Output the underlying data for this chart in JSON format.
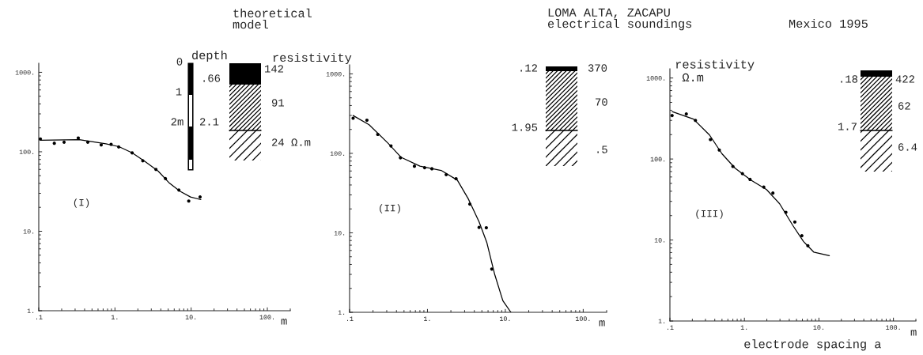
{
  "chart_data": [
    {
      "type": "scatter",
      "log": "xy",
      "xlim": [
        0.1,
        200
      ],
      "ylim": [
        1,
        1300
      ],
      "xticks": [
        {
          "value": 0.1,
          "label": ".1"
        },
        {
          "value": 1,
          "label": "1."
        },
        {
          "value": 10,
          "label": "10."
        },
        {
          "value": 100,
          "label": "100."
        }
      ],
      "yticks": [
        {
          "value": 1,
          "label": "1."
        },
        {
          "value": 10,
          "label": "10."
        },
        {
          "value": 100,
          "label": "100."
        },
        {
          "value": 1000,
          "label": "1000."
        }
      ],
      "annotations": [
        "theoretical\nmodel",
        "0",
        "1",
        "2m",
        "depth",
        ".66",
        "2.1",
        "resistivity",
        "142",
        "91",
        "24 Ω.m",
        "(I)",
        "m"
      ],
      "series": [
        {
          "marker": "circle",
          "color": "#000000",
          "x": [
            0.105,
            0.16,
            0.215,
            0.33,
            0.44,
            0.66,
            0.89,
            1.12,
            1.68,
            2.32,
            3.45,
            4.6,
            6.9,
            9.3,
            13.1
          ],
          "values": [
            145,
            128,
            132,
            149,
            132,
            122,
            124,
            115,
            97,
            77,
            60,
            46,
            33,
            24,
            27
          ]
        },
        {
          "type": "line",
          "color": "#000000",
          "x": [
            0.105,
            0.34,
            0.76,
            1.13,
            1.68,
            2.5,
            3.7,
            5.1,
            7.1,
            9.8,
            13.4
          ],
          "values": [
            140,
            142,
            126,
            116,
            97,
            75,
            57,
            41,
            32,
            27,
            25
          ]
        }
      ]
    },
    {
      "type": "scatter",
      "log": "xy",
      "xlim": [
        0.1,
        200
      ],
      "ylim": [
        1,
        1300
      ],
      "title": "LOMA ALTA, ZACAPU\nelectrical soundings",
      "xticks": [
        {
          "value": 0.1,
          "label": ".1"
        },
        {
          "value": 1,
          "label": "1."
        },
        {
          "value": 10,
          "label": "10."
        },
        {
          "value": 100,
          "label": "100."
        }
      ],
      "yticks": [
        {
          "value": 1,
          "label": "1."
        },
        {
          "value": 10,
          "label": "10."
        },
        {
          "value": 100,
          "label": "100."
        },
        {
          "value": 1000,
          "label": "1000."
        }
      ],
      "annotations": [
        ".12",
        "370",
        "70",
        "1.95",
        ".5",
        "(II)",
        "m"
      ],
      "series": [
        {
          "marker": "circle",
          "color": "#000000",
          "x": [
            0.111,
            0.167,
            0.23,
            0.34,
            0.45,
            0.68,
            0.92,
            1.14,
            1.74,
            2.33,
            3.5,
            4.6,
            5.7,
            6.7
          ],
          "values": [
            277,
            261,
            173,
            124,
            88,
            69,
            66,
            64,
            54,
            48,
            23,
            11.7,
            11.6,
            3.5
          ]
        },
        {
          "type": "line",
          "color": "#000000",
          "x": [
            0.111,
            0.178,
            0.31,
            0.46,
            0.8,
            1.5,
            2.42,
            3.33,
            4.6,
            5.8,
            7.3,
            9.3,
            11.8
          ],
          "values": [
            299,
            229,
            135,
            89,
            69,
            61,
            46,
            27,
            13.8,
            7.5,
            3.0,
            1.4,
            1.0
          ]
        }
      ]
    },
    {
      "type": "scatter",
      "log": "xy",
      "xlim": [
        0.1,
        200
      ],
      "ylim": [
        1,
        1300
      ],
      "xlabel": "electrode spacing a",
      "ylabel": "resistivity\n Ω.m",
      "xticks": [
        {
          "value": 0.1,
          "label": ".1"
        },
        {
          "value": 1,
          "label": "1."
        },
        {
          "value": 10,
          "label": "10."
        },
        {
          "value": 100,
          "label": "100."
        }
      ],
      "yticks": [
        {
          "value": 1,
          "label": "1."
        },
        {
          "value": 10,
          "label": "10."
        },
        {
          "value": 100,
          "label": "100."
        },
        {
          "value": 1000,
          "label": "1000."
        }
      ],
      "annotations": [
        "Mexico 1995",
        ".18",
        "422",
        "62",
        "1.7",
        "6.4",
        "(III)",
        "m"
      ],
      "series": [
        {
          "marker": "circle",
          "color": "#000000",
          "x": [
            0.107,
            0.166,
            0.22,
            0.35,
            0.46,
            0.7,
            0.94,
            1.19,
            1.82,
            2.41,
            3.6,
            4.75,
            5.9,
            7.1
          ],
          "values": [
            344,
            360,
            300,
            174,
            129,
            81,
            66,
            56,
            45,
            38,
            22,
            16.7,
            11.3,
            8.5
          ]
        },
        {
          "type": "line",
          "color": "#000000",
          "x": [
            0.107,
            0.207,
            0.34,
            0.5,
            0.75,
            1.22,
            1.98,
            2.97,
            4.47,
            6.2,
            8.5,
            13.8
          ],
          "values": [
            385,
            311,
            198,
            116,
            77,
            55,
            42,
            28,
            15.1,
            9.6,
            7.1,
            6.4
          ]
        }
      ]
    }
  ]
}
